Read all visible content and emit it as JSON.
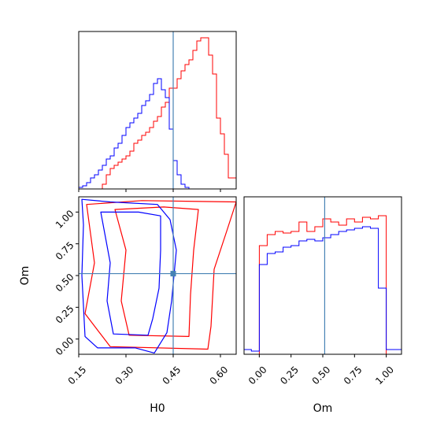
{
  "colors": {
    "run_a": "#ff0000",
    "run_b": "#0000ff",
    "truth": "#4682b4"
  },
  "axis_labels": {
    "h0": "H0",
    "om": "Om"
  },
  "chart_data": [
    {
      "type": "histogram",
      "panel": "marginal-H0",
      "xlabel": "",
      "ylabel": "",
      "xlim": [
        0.15,
        0.65
      ],
      "xticks": [
        "0.15",
        "0.30",
        "0.45",
        "0.60"
      ],
      "truth_x": 0.45,
      "bin_edges": [
        0.15,
        0.1625,
        0.175,
        0.1875,
        0.2,
        0.2125,
        0.225,
        0.2375,
        0.25,
        0.2625,
        0.275,
        0.2875,
        0.3,
        0.3125,
        0.325,
        0.3375,
        0.35,
        0.3625,
        0.375,
        0.3875,
        0.4,
        0.4125,
        0.425,
        0.4375,
        0.45,
        0.4625,
        0.475,
        0.4875,
        0.5,
        0.5125,
        0.525,
        0.5375,
        0.55,
        0.5625,
        0.575,
        0.5875,
        0.6,
        0.6125,
        0.625,
        0.6375,
        0.65
      ],
      "series": [
        {
          "color": "#ff0000",
          "counts": [
            0,
            0,
            0,
            0,
            0,
            0,
            0.03,
            0.09,
            0.13,
            0.15,
            0.17,
            0.19,
            0.21,
            0.24,
            0.29,
            0.31,
            0.34,
            0.36,
            0.39,
            0.43,
            0.46,
            0.52,
            0.55,
            0.64,
            0.64,
            0.7,
            0.75,
            0.79,
            0.82,
            0.88,
            0.94,
            0.96,
            0.96,
            0.85,
            0.73,
            0.45,
            0.35,
            0.22,
            0.07,
            0.07
          ]
        },
        {
          "color": "#0000ff",
          "counts": [
            0.01,
            0.02,
            0.04,
            0.07,
            0.09,
            0.12,
            0.15,
            0.19,
            0.21,
            0.26,
            0.29,
            0.34,
            0.39,
            0.42,
            0.45,
            0.48,
            0.53,
            0.56,
            0.6,
            0.67,
            0.7,
            0.63,
            0.58,
            0.38,
            0.18,
            0.09,
            0.03,
            0.01,
            0,
            0,
            0,
            0,
            0,
            0,
            0,
            0,
            0,
            0,
            0,
            0
          ]
        }
      ]
    },
    {
      "type": "contour",
      "panel": "joint-H0-Om",
      "xlabel": "H0",
      "ylabel": "Om",
      "xlim": [
        0.15,
        0.65
      ],
      "ylim": [
        -0.12,
        1.12
      ],
      "xticks": [
        "0.15",
        "0.30",
        "0.45",
        "0.60"
      ],
      "yticks": [
        "0.00",
        "0.25",
        "0.50",
        "0.75",
        "1.00"
      ],
      "truth": {
        "x": 0.45,
        "y": 0.515
      },
      "contours": [
        {
          "color": "#ff0000",
          "points": [
            [
              0.175,
              1.06
            ],
            [
              0.35,
              1.09
            ],
            [
              0.65,
              1.08
            ],
            [
              0.62,
              0.85
            ],
            [
              0.58,
              0.55
            ],
            [
              0.57,
              0.1
            ],
            [
              0.56,
              -0.08
            ],
            [
              0.25,
              -0.06
            ],
            [
              0.17,
              0.2
            ],
            [
              0.2,
              0.6
            ],
            [
              0.175,
              1.06
            ]
          ]
        },
        {
          "color": "#ff0000",
          "points": [
            [
              0.265,
              1.02
            ],
            [
              0.42,
              1.04
            ],
            [
              0.53,
              1.02
            ],
            [
              0.515,
              0.7
            ],
            [
              0.505,
              0.35
            ],
            [
              0.5,
              0.02
            ],
            [
              0.31,
              0.03
            ],
            [
              0.285,
              0.3
            ],
            [
              0.3,
              0.7
            ],
            [
              0.265,
              1.02
            ]
          ]
        },
        {
          "color": "#0000ff",
          "points": [
            [
              0.16,
              1.1
            ],
            [
              0.25,
              1.08
            ],
            [
              0.4,
              1.06
            ],
            [
              0.44,
              0.94
            ],
            [
              0.46,
              0.7
            ],
            [
              0.445,
              0.3
            ],
            [
              0.43,
              0.05
            ],
            [
              0.39,
              -0.11
            ],
            [
              0.33,
              -0.07
            ],
            [
              0.21,
              -0.07
            ],
            [
              0.17,
              0.02
            ],
            [
              0.16,
              0.5
            ],
            [
              0.165,
              0.9
            ],
            [
              0.16,
              1.1
            ]
          ]
        },
        {
          "color": "#0000ff",
          "points": [
            [
              0.22,
              1.0
            ],
            [
              0.34,
              1.0
            ],
            [
              0.41,
              0.97
            ],
            [
              0.41,
              0.7
            ],
            [
              0.405,
              0.4
            ],
            [
              0.385,
              0.16
            ],
            [
              0.37,
              0.03
            ],
            [
              0.26,
              0.04
            ],
            [
              0.24,
              0.3
            ],
            [
              0.25,
              0.6
            ],
            [
              0.22,
              1.0
            ]
          ]
        }
      ]
    },
    {
      "type": "histogram",
      "panel": "marginal-Om",
      "xlabel": "Om",
      "ylabel": "",
      "xlim": [
        -0.12,
        1.12
      ],
      "xticks": [
        "0.00",
        "0.25",
        "0.50",
        "0.75",
        "1.00"
      ],
      "truth_x": 0.515,
      "bin_edges": [
        -0.125,
        -0.0625,
        0,
        0.0625,
        0.125,
        0.1875,
        0.25,
        0.3125,
        0.375,
        0.4375,
        0.5,
        0.5625,
        0.625,
        0.6875,
        0.75,
        0.8125,
        0.875,
        0.9375,
        1.0,
        1.0625,
        1.125
      ],
      "series": [
        {
          "color": "#ff0000",
          "counts": [
            0,
            0,
            0.69,
            0.76,
            0.78,
            0.77,
            0.78,
            0.84,
            0.78,
            0.81,
            0.86,
            0.84,
            0.82,
            0.86,
            0.84,
            0.87,
            0.86,
            0.88,
            0,
            0
          ]
        },
        {
          "color": "#0000ff",
          "counts": [
            0.03,
            0.02,
            0.57,
            0.64,
            0.65,
            0.68,
            0.69,
            0.72,
            0.73,
            0.72,
            0.74,
            0.76,
            0.78,
            0.79,
            0.8,
            0.81,
            0.8,
            0.42,
            0.03,
            0.03
          ]
        }
      ]
    }
  ]
}
